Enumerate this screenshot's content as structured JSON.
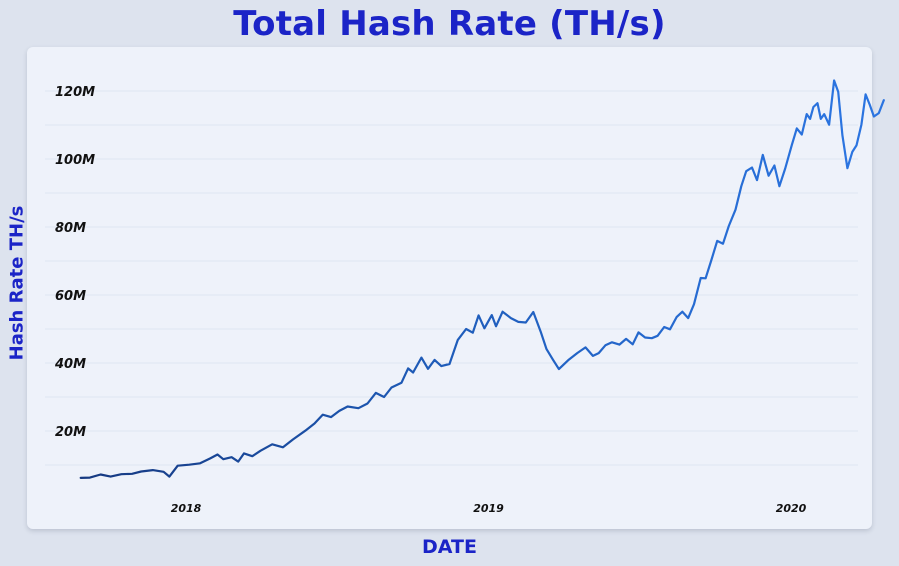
{
  "chart_data": {
    "type": "line",
    "title": "Total Hash Rate (TH/s)",
    "xlabel": "DATE",
    "ylabel": "Hash Rate TH/s",
    "x_ticks": [
      "2018",
      "2019",
      "2020"
    ],
    "y_ticks": [
      "20M",
      "40M",
      "60M",
      "80M",
      "100M",
      "120M"
    ],
    "y_tick_values": [
      20,
      40,
      60,
      80,
      100,
      120
    ],
    "grid": true,
    "legend": "none",
    "colors": {
      "early": "#163a82",
      "late": "#2b74e0",
      "title": "#1b24c7"
    },
    "series": [
      {
        "values": [
          [
            "2017-08-27",
            6.2
          ],
          [
            "2017-09-07",
            6.3
          ],
          [
            "2017-09-20",
            7.2
          ],
          [
            "2017-10-02",
            6.6
          ],
          [
            "2017-10-15",
            7.3
          ],
          [
            "2017-10-28",
            7.4
          ],
          [
            "2017-11-08",
            8.1
          ],
          [
            "2017-11-22",
            8.5
          ],
          [
            "2017-12-05",
            8.0
          ],
          [
            "2017-12-12",
            6.6
          ],
          [
            "2017-12-22",
            9.8
          ],
          [
            "2018-01-05",
            10.1
          ],
          [
            "2018-01-18",
            10.5
          ],
          [
            "2018-01-30",
            11.9
          ],
          [
            "2018-02-08",
            13.1
          ],
          [
            "2018-02-15",
            11.7
          ],
          [
            "2018-02-25",
            12.3
          ],
          [
            "2018-03-05",
            11.0
          ],
          [
            "2018-03-12",
            13.4
          ],
          [
            "2018-03-22",
            12.6
          ],
          [
            "2018-04-01",
            14.2
          ],
          [
            "2018-04-15",
            16.1
          ],
          [
            "2018-04-28",
            15.2
          ],
          [
            "2018-05-10",
            17.5
          ],
          [
            "2018-05-25",
            20.1
          ],
          [
            "2018-06-05",
            22.2
          ],
          [
            "2018-06-15",
            24.8
          ],
          [
            "2018-06-25",
            24.1
          ],
          [
            "2018-07-05",
            25.9
          ],
          [
            "2018-07-15",
            27.2
          ],
          [
            "2018-07-28",
            26.7
          ],
          [
            "2018-08-08",
            28.1
          ],
          [
            "2018-08-18",
            31.2
          ],
          [
            "2018-08-28",
            30.0
          ],
          [
            "2018-09-06",
            32.8
          ],
          [
            "2018-09-18",
            34.2
          ],
          [
            "2018-09-26",
            38.4
          ],
          [
            "2018-10-02",
            37.2
          ],
          [
            "2018-10-12",
            41.6
          ],
          [
            "2018-10-20",
            38.3
          ],
          [
            "2018-10-28",
            40.9
          ],
          [
            "2018-11-05",
            39.1
          ],
          [
            "2018-11-15",
            39.7
          ],
          [
            "2018-11-25",
            46.8
          ],
          [
            "2018-12-05",
            50.0
          ],
          [
            "2018-12-13",
            48.9
          ],
          [
            "2018-12-20",
            54.0
          ],
          [
            "2018-12-27",
            50.2
          ],
          [
            "2019-01-05",
            54.1
          ],
          [
            "2019-01-10",
            50.8
          ],
          [
            "2019-01-18",
            55.1
          ],
          [
            "2019-01-28",
            53.2
          ],
          [
            "2019-02-06",
            52.1
          ],
          [
            "2019-02-15",
            51.9
          ],
          [
            "2019-02-24",
            55.0
          ],
          [
            "2019-03-05",
            49.2
          ],
          [
            "2019-03-12",
            44.1
          ],
          [
            "2019-03-20",
            40.9
          ],
          [
            "2019-03-27",
            38.2
          ],
          [
            "2019-04-08",
            41.0
          ],
          [
            "2019-04-18",
            42.9
          ],
          [
            "2019-04-28",
            44.6
          ],
          [
            "2019-05-07",
            42.1
          ],
          [
            "2019-05-14",
            42.9
          ],
          [
            "2019-05-22",
            45.2
          ],
          [
            "2019-05-30",
            46.1
          ],
          [
            "2019-06-08",
            45.4
          ],
          [
            "2019-06-16",
            47.1
          ],
          [
            "2019-06-24",
            45.5
          ],
          [
            "2019-07-01",
            49.0
          ],
          [
            "2019-07-09",
            47.5
          ],
          [
            "2019-07-17",
            47.3
          ],
          [
            "2019-07-24",
            48.0
          ],
          [
            "2019-08-01",
            50.6
          ],
          [
            "2019-08-08",
            49.9
          ],
          [
            "2019-08-16",
            53.5
          ],
          [
            "2019-08-23",
            55.1
          ],
          [
            "2019-08-30",
            53.2
          ],
          [
            "2019-09-06",
            57.3
          ],
          [
            "2019-09-14",
            65.0
          ],
          [
            "2019-09-20",
            64.9
          ],
          [
            "2019-09-27",
            70.3
          ],
          [
            "2019-10-04",
            75.9
          ],
          [
            "2019-10-11",
            75.1
          ],
          [
            "2019-10-18",
            80.3
          ],
          [
            "2019-10-26",
            85.1
          ],
          [
            "2019-11-02",
            92.0
          ],
          [
            "2019-11-08",
            96.4
          ],
          [
            "2019-11-15",
            97.5
          ],
          [
            "2019-11-21",
            93.8
          ],
          [
            "2019-11-28",
            101.2
          ],
          [
            "2019-12-05",
            95.1
          ],
          [
            "2019-12-12",
            98.1
          ],
          [
            "2019-12-18",
            92.0
          ],
          [
            "2019-12-25",
            97.2
          ],
          [
            "2020-01-02",
            104.1
          ],
          [
            "2020-01-08",
            109.0
          ],
          [
            "2020-01-14",
            107.2
          ],
          [
            "2020-01-20",
            113.2
          ],
          [
            "2020-01-24",
            111.8
          ],
          [
            "2020-01-28",
            115.3
          ],
          [
            "2020-02-02",
            116.4
          ],
          [
            "2020-02-06",
            111.8
          ],
          [
            "2020-02-10",
            113.2
          ],
          [
            "2020-02-16",
            110.1
          ],
          [
            "2020-02-22",
            123.1
          ],
          [
            "2020-02-27",
            119.8
          ],
          [
            "2020-03-03",
            107.0
          ],
          [
            "2020-03-09",
            97.3
          ],
          [
            "2020-03-15",
            102.1
          ],
          [
            "2020-03-20",
            104.0
          ],
          [
            "2020-03-26",
            110.1
          ],
          [
            "2020-03-31",
            119.0
          ],
          [
            "2020-04-05",
            116.0
          ],
          [
            "2020-04-10",
            112.5
          ],
          [
            "2020-04-16",
            113.5
          ],
          [
            "2020-04-22",
            117.3
          ]
        ]
      }
    ]
  }
}
